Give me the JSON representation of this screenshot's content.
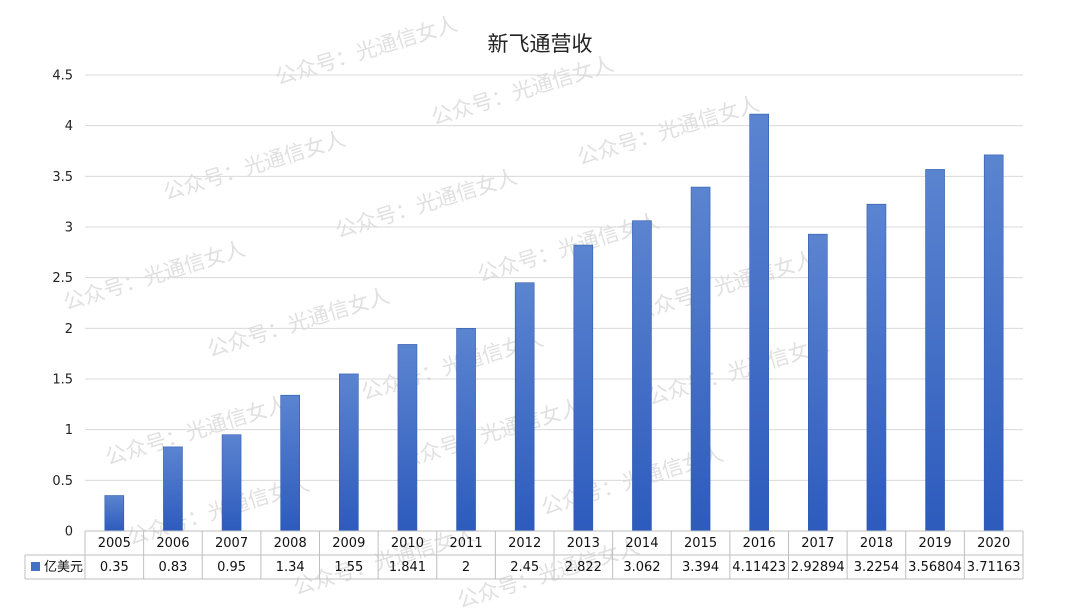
{
  "chart_data": {
    "type": "bar",
    "title": "新飞通营收",
    "categories": [
      "2005",
      "2006",
      "2007",
      "2008",
      "2009",
      "2010",
      "2011",
      "2012",
      "2013",
      "2014",
      "2015",
      "2016",
      "2017",
      "2018",
      "2019",
      "2020"
    ],
    "series": [
      {
        "name": "亿美元",
        "values": [
          0.35,
          0.83,
          0.95,
          1.34,
          1.55,
          1.841,
          2,
          2.45,
          2.822,
          3.062,
          3.394,
          4.11423,
          2.92894,
          3.2254,
          3.56804,
          3.71163
        ],
        "labels": [
          "0.35",
          "0.83",
          "0.95",
          "1.34",
          "1.55",
          "1.841",
          "2",
          "2.45",
          "2.822",
          "3.062",
          "3.394",
          "4.11423",
          "2.92894",
          "3.2254",
          "3.56804",
          "3.71163"
        ]
      }
    ],
    "y_ticks": [
      "0",
      "0.5",
      "1",
      "1.5",
      "2",
      "2.5",
      "3",
      "3.5",
      "4",
      "4.5"
    ],
    "ylim": [
      0,
      4.5
    ],
    "grid": true,
    "legend": "data-table-left"
  },
  "watermark": "公众号：光通信女人",
  "colors": {
    "bar": "#4472c4",
    "bar_dark": "#2e59b8",
    "grid": "#d9d9d9",
    "table_border": "#bfbfbf"
  }
}
